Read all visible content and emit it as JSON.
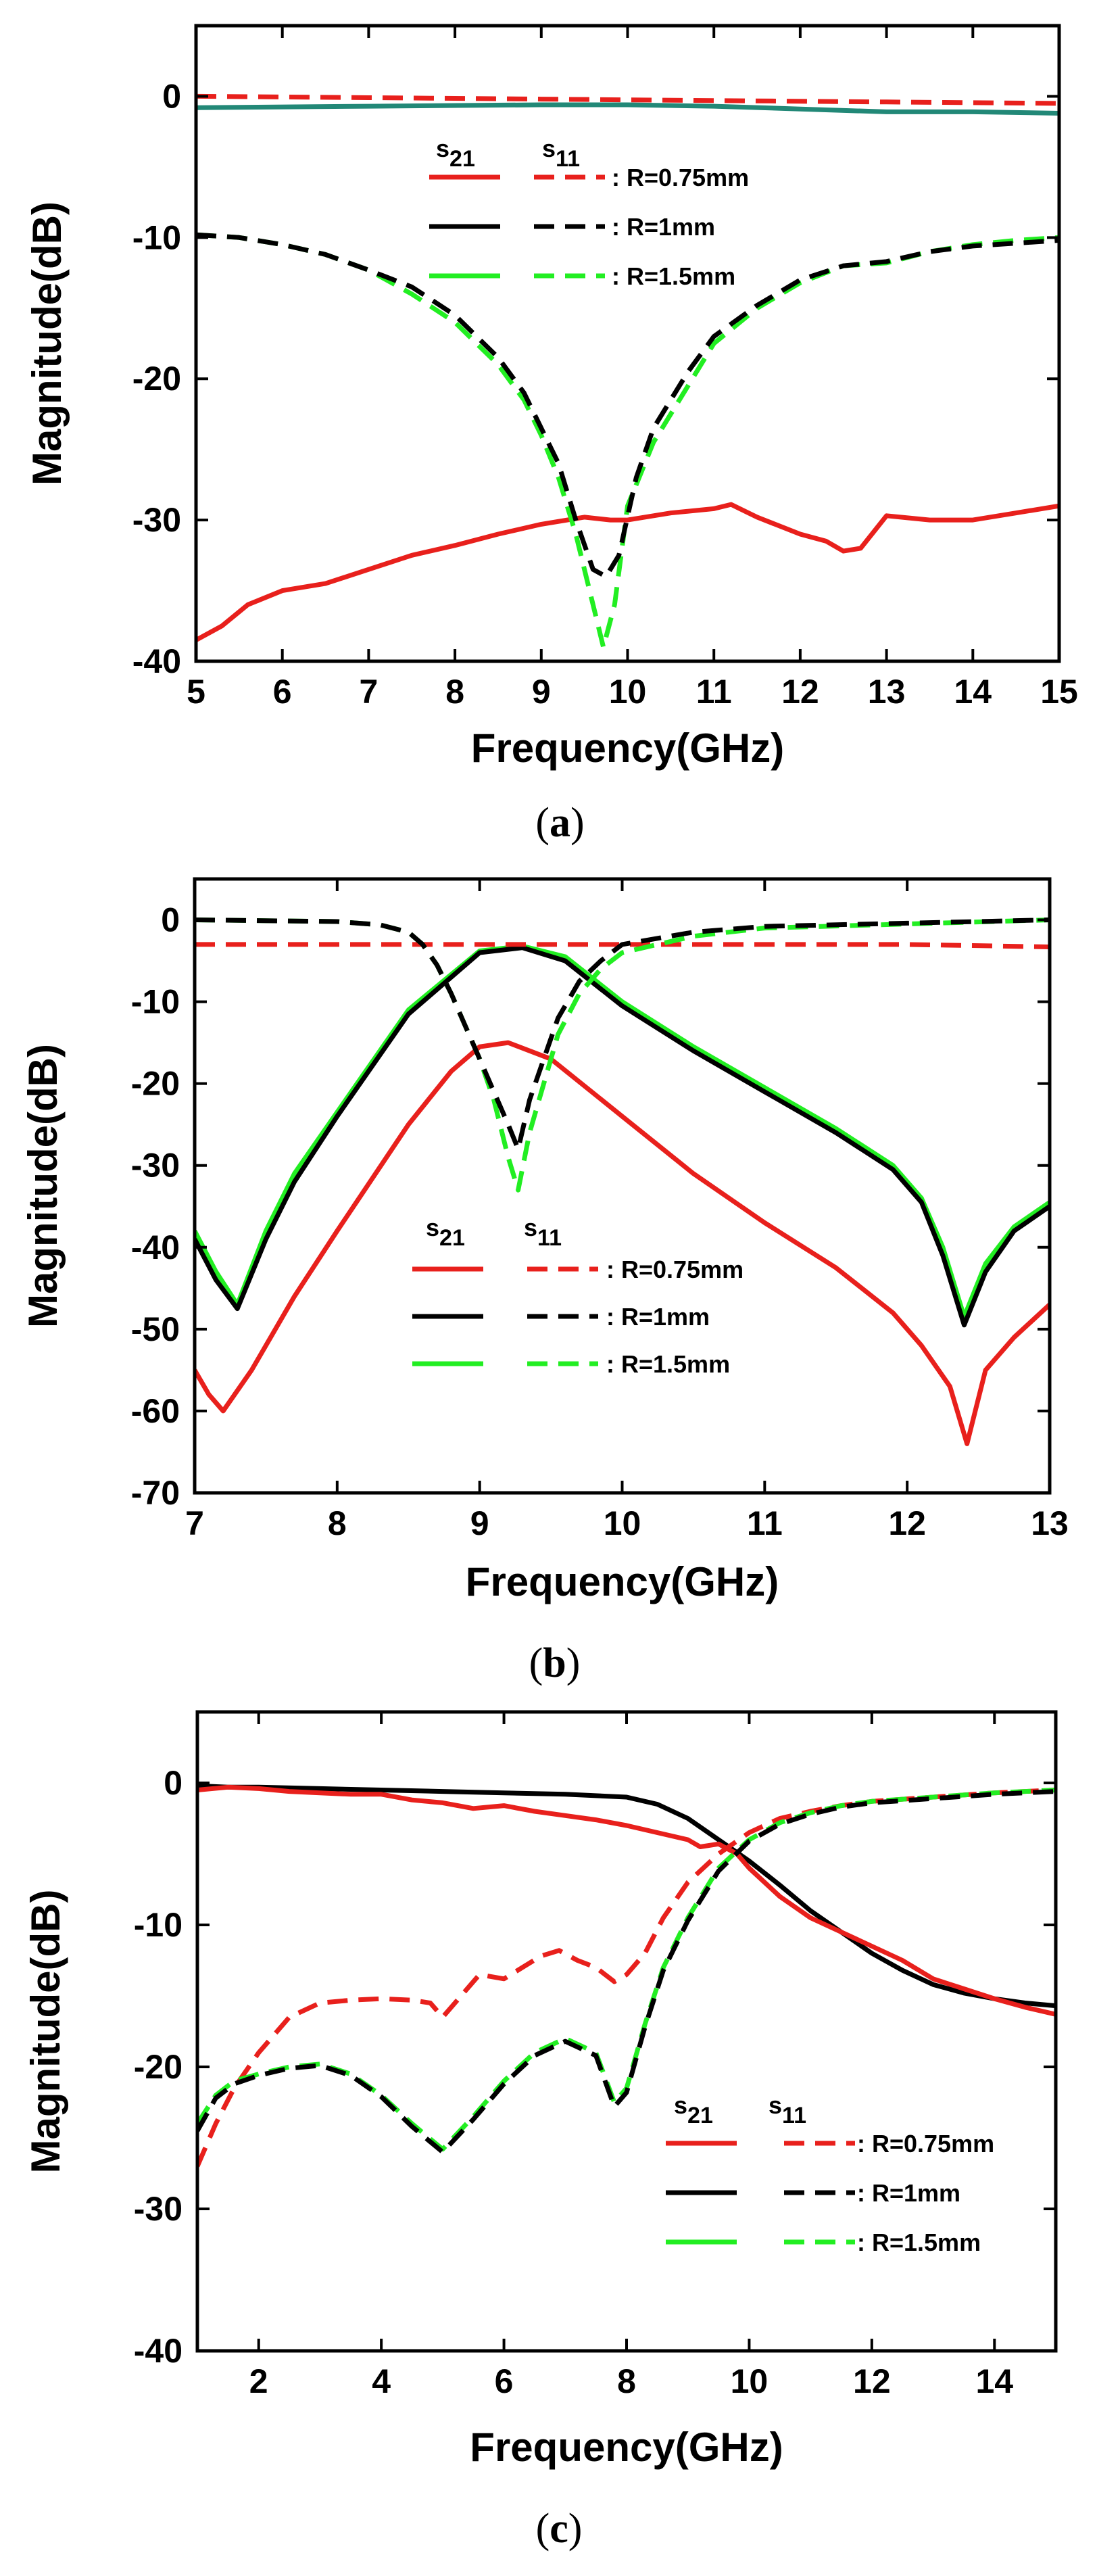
{
  "colors": {
    "red": "#e8201c",
    "black": "#000000",
    "green": "#22ee22",
    "teal": "#228877"
  },
  "chart_data": [
    {
      "type": "line",
      "panel": "a",
      "caption": {
        "open": "(",
        "letter": "a",
        "close": ")"
      },
      "xlabel": "Frequency(GHz)",
      "ylabel": "Magnitude(dB)",
      "xlim": [
        5,
        15
      ],
      "ylim": [
        -40,
        5
      ],
      "xticks": [
        5,
        6,
        7,
        8,
        9,
        10,
        11,
        12,
        13,
        14,
        15
      ],
      "yticks": [
        0,
        -10,
        -20,
        -30,
        -40
      ],
      "legend": {
        "placement": "top-center",
        "header": {
          "s21": [
            "s",
            "21"
          ],
          "s11": [
            "s",
            "11"
          ]
        },
        "entries": [
          {
            "label": ": R=0.75mm",
            "color": "#e8201c"
          },
          {
            "label": ": R=1mm",
            "color": "#000000"
          },
          {
            "label": ": R=1.5mm",
            "color": "#22ee22"
          }
        ]
      },
      "series": [
        {
          "name": "S21 R=0.75mm",
          "color": "#e8201c",
          "dash": false,
          "x": [
            5,
            5.3,
            5.6,
            6,
            6.5,
            7,
            7.5,
            8,
            8.5,
            9,
            9.5,
            9.8,
            10,
            10.5,
            11,
            11.2,
            11.5,
            12,
            12.3,
            12.5,
            12.7,
            13,
            13.5,
            14,
            14.5,
            15
          ],
          "y": [
            -38.5,
            -37.5,
            -36,
            -35,
            -34.5,
            -33.5,
            -32.5,
            -31.8,
            -31,
            -30.3,
            -29.8,
            -30,
            -30,
            -29.5,
            -29.2,
            -28.9,
            -29.8,
            -31,
            -31.5,
            -32.2,
            -32,
            -29.7,
            -30,
            -30,
            -29.5,
            -29
          ]
        },
        {
          "name": "S11 R=0.75mm",
          "color": "#e8201c",
          "dash": true,
          "x": [
            5,
            7,
            9,
            11,
            13,
            15
          ],
          "y": [
            0,
            -0.1,
            -0.2,
            -0.3,
            -0.4,
            -0.5
          ]
        },
        {
          "name": "S21 R=1mm/R=1.5mm",
          "color": "#228877",
          "dash": false,
          "x": [
            5,
            7,
            9,
            10,
            11,
            12,
            13,
            14,
            15
          ],
          "y": [
            -0.8,
            -0.7,
            -0.6,
            -0.6,
            -0.7,
            -0.9,
            -1.1,
            -1.1,
            -1.2
          ]
        },
        {
          "name": "S11 R=1.5mm",
          "color": "#22ee22",
          "dash": true,
          "x": [
            5,
            5.5,
            6,
            6.5,
            7,
            7.5,
            8,
            8.5,
            8.8,
            9,
            9.2,
            9.4,
            9.6,
            9.72,
            9.85,
            10,
            10.3,
            10.7,
            11,
            11.5,
            12,
            12.5,
            13,
            13.5,
            14,
            14.5,
            15
          ],
          "y": [
            -9.8,
            -10,
            -10.5,
            -11.2,
            -12.3,
            -14,
            -16,
            -19,
            -21.5,
            -24,
            -27,
            -31,
            -36,
            -39,
            -36,
            -29,
            -24.5,
            -20.5,
            -17.5,
            -15,
            -13.2,
            -12,
            -11.8,
            -11,
            -10.5,
            -10.2,
            -10
          ]
        },
        {
          "name": "S11 R=1mm",
          "color": "#000000",
          "dash": true,
          "x": [
            5,
            5.5,
            6,
            6.5,
            7,
            7.5,
            8,
            8.5,
            8.8,
            9,
            9.2,
            9.4,
            9.6,
            9.75,
            9.9,
            10.1,
            10.3,
            10.7,
            11,
            11.5,
            12,
            12.5,
            13,
            13.5,
            14,
            14.5,
            15
          ],
          "y": [
            -9.8,
            -10,
            -10.5,
            -11.2,
            -12.3,
            -13.5,
            -15.5,
            -18.5,
            -21,
            -23.5,
            -26,
            -30,
            -33.5,
            -34,
            -32.5,
            -27,
            -23.5,
            -19.5,
            -17,
            -14.8,
            -13,
            -12,
            -11.7,
            -11,
            -10.6,
            -10.4,
            -10.2
          ]
        }
      ]
    },
    {
      "type": "line",
      "panel": "b",
      "caption": {
        "open": "(",
        "letter": "b",
        "close": ")"
      },
      "xlabel": "Frequency(GHz)",
      "ylabel": "Magnitude(dB)",
      "xlim": [
        7,
        13
      ],
      "ylim": [
        -70,
        5
      ],
      "xticks": [
        7,
        8,
        9,
        10,
        11,
        12,
        13
      ],
      "yticks": [
        0,
        -10,
        -20,
        -30,
        -40,
        -50,
        -60,
        -70
      ],
      "legend": {
        "placement": "center-left",
        "header": {
          "s21": [
            "s",
            "21"
          ],
          "s11": [
            "s",
            "11"
          ]
        },
        "entries": [
          {
            "label": ": R=0.75mm",
            "color": "#e8201c"
          },
          {
            "label": ": R=1mm",
            "color": "#000000"
          },
          {
            "label": ": R=1.5mm",
            "color": "#22ee22"
          }
        ]
      },
      "series": [
        {
          "name": "S21 R=1.5mm",
          "color": "#22ee22",
          "dash": false,
          "x": [
            7,
            7.15,
            7.3,
            7.5,
            7.7,
            8,
            8.5,
            9,
            9.3,
            9.6,
            10,
            10.5,
            11,
            11.5,
            11.9,
            12.1,
            12.25,
            12.4,
            12.55,
            12.75,
            13
          ],
          "y": [
            -38,
            -43,
            -47,
            -38,
            -31,
            -23.5,
            -11,
            -3.8,
            -3.2,
            -4.5,
            -10,
            -15.5,
            -20.5,
            -25.5,
            -30,
            -34,
            -40,
            -48.5,
            -42,
            -37.5,
            -34.5
          ]
        },
        {
          "name": "S21 R=1mm",
          "color": "#000000",
          "dash": false,
          "x": [
            7,
            7.15,
            7.3,
            7.5,
            7.7,
            8,
            8.5,
            9,
            9.3,
            9.6,
            10,
            10.5,
            11,
            11.5,
            11.9,
            12.1,
            12.25,
            12.4,
            12.55,
            12.75,
            13
          ],
          "y": [
            -39,
            -44,
            -47.5,
            -39,
            -32,
            -24,
            -11.5,
            -4,
            -3.4,
            -5,
            -10.5,
            -16,
            -21,
            -26,
            -30.5,
            -34.5,
            -41,
            -49.5,
            -43,
            -38,
            -35
          ]
        },
        {
          "name": "S21 R=0.75mm",
          "color": "#e8201c",
          "dash": false,
          "x": [
            7,
            7.1,
            7.2,
            7.4,
            7.7,
            8,
            8.5,
            8.8,
            9,
            9.2,
            9.5,
            10,
            10.5,
            11,
            11.5,
            11.9,
            12.1,
            12.3,
            12.42,
            12.55,
            12.75,
            13
          ],
          "y": [
            -55,
            -58,
            -60,
            -55,
            -46,
            -38,
            -25,
            -18.5,
            -15.5,
            -15,
            -17,
            -24,
            -31,
            -37,
            -42.5,
            -48,
            -52,
            -57,
            -64,
            -55,
            -51,
            -47
          ]
        },
        {
          "name": "S11 R=0.75mm",
          "color": "#e8201c",
          "dash": true,
          "x": [
            7,
            8,
            9,
            10,
            11,
            12,
            13
          ],
          "y": [
            -3,
            -3,
            -3,
            -3,
            -3,
            -3,
            -3.3
          ]
        },
        {
          "name": "S11 R=1.5mm",
          "color": "#22ee22",
          "dash": true,
          "x": [
            7,
            8,
            8.3,
            8.5,
            8.6,
            8.7,
            8.8,
            8.9,
            9,
            9.1,
            9.2,
            9.27,
            9.35,
            9.45,
            9.55,
            9.7,
            9.85,
            10,
            10.5,
            11,
            12,
            13
          ],
          "y": [
            0,
            -0.2,
            -0.6,
            -1.5,
            -3,
            -5.5,
            -9,
            -13,
            -17,
            -22,
            -29,
            -33,
            -26,
            -20,
            -14,
            -9,
            -6,
            -4,
            -2,
            -1,
            -0.5,
            0
          ]
        },
        {
          "name": "S11 R=1mm",
          "color": "#000000",
          "dash": true,
          "x": [
            7,
            8,
            8.3,
            8.5,
            8.6,
            8.7,
            8.8,
            8.9,
            9,
            9.1,
            9.2,
            9.27,
            9.35,
            9.45,
            9.55,
            9.7,
            9.85,
            10,
            10.5,
            11,
            12,
            13
          ],
          "y": [
            0,
            -0.2,
            -0.6,
            -1.5,
            -3,
            -5.5,
            -9,
            -13,
            -17,
            -21,
            -25,
            -28,
            -22,
            -17,
            -12,
            -7.5,
            -5,
            -3,
            -1.5,
            -0.8,
            -0.4,
            0
          ]
        }
      ]
    },
    {
      "type": "line",
      "panel": "c",
      "caption": {
        "open": "(",
        "letter": "c",
        "close": ")"
      },
      "xlabel": "Frequency(GHz)",
      "ylabel": "Magnitude(dB)",
      "xlim": [
        1,
        15
      ],
      "ylim": [
        -40,
        5
      ],
      "xticks": [
        2,
        4,
        6,
        8,
        10,
        12,
        14
      ],
      "yticks": [
        0,
        -10,
        -20,
        -30,
        -40
      ],
      "legend": {
        "placement": "bottom-right",
        "header": {
          "s21": [
            "s",
            "21"
          ],
          "s11": [
            "s",
            "11"
          ]
        },
        "entries": [
          {
            "label": ": R=0.75mm",
            "color": "#e8201c"
          },
          {
            "label": ": R=1mm",
            "color": "#000000"
          },
          {
            "label": ": R=1.5mm",
            "color": "#22ee22"
          }
        ]
      },
      "series": [
        {
          "name": "S21 R=1mm/R=1.5mm",
          "color": "#000000",
          "dash": false,
          "x": [
            1,
            1.5,
            2,
            3,
            4,
            5,
            6,
            7,
            7.5,
            8,
            8.5,
            9,
            9.5,
            10,
            10.5,
            11,
            11.5,
            12,
            12.5,
            13,
            13.5,
            14,
            14.5,
            15
          ],
          "y": [
            -0.2,
            -0.3,
            -0.3,
            -0.4,
            -0.5,
            -0.6,
            -0.7,
            -0.8,
            -0.9,
            -1,
            -1.5,
            -2.5,
            -4,
            -5.5,
            -7.2,
            -9,
            -10.5,
            -12,
            -13.2,
            -14.2,
            -14.8,
            -15.2,
            -15.5,
            -15.7
          ]
        },
        {
          "name": "S21 R=0.75mm",
          "color": "#e8201c",
          "dash": false,
          "x": [
            1,
            1.5,
            2,
            2.5,
            3,
            3.5,
            4,
            4.5,
            5,
            5.5,
            6,
            6.5,
            7,
            7.5,
            8,
            8.5,
            9,
            9.2,
            9.5,
            9.8,
            10,
            10.5,
            11,
            11.5,
            12,
            12.5,
            13,
            13.5,
            14,
            14.5,
            15
          ],
          "y": [
            -0.5,
            -0.3,
            -0.4,
            -0.6,
            -0.7,
            -0.8,
            -0.8,
            -1.2,
            -1.4,
            -1.8,
            -1.6,
            -2,
            -2.3,
            -2.6,
            -3,
            -3.5,
            -4,
            -4.5,
            -4.3,
            -5,
            -6,
            -8,
            -9.5,
            -10.5,
            -11.5,
            -12.5,
            -13.8,
            -14.5,
            -15.2,
            -15.8,
            -16.3
          ]
        },
        {
          "name": "S11 R=0.75mm",
          "color": "#e8201c",
          "dash": true,
          "x": [
            1,
            1.3,
            1.6,
            2,
            2.5,
            3,
            3.5,
            4,
            4.5,
            4.8,
            5,
            5.3,
            5.6,
            6,
            6.3,
            6.6,
            6.9,
            7.2,
            7.5,
            7.8,
            8,
            8.3,
            8.6,
            9,
            9.5,
            10,
            10.5,
            11,
            11.5,
            12,
            13,
            14,
            15
          ],
          "y": [
            -27,
            -24,
            -21.5,
            -19,
            -16.5,
            -15.5,
            -15.3,
            -15.2,
            -15.3,
            -15.5,
            -16.5,
            -15,
            -13.5,
            -13.8,
            -13,
            -12.2,
            -11.8,
            -12.5,
            -13,
            -14,
            -13.5,
            -12,
            -9.5,
            -7,
            -5,
            -3.5,
            -2.5,
            -2,
            -1.6,
            -1.3,
            -1,
            -0.7,
            -0.5
          ]
        },
        {
          "name": "S11 R=1.5mm",
          "color": "#22ee22",
          "dash": true,
          "x": [
            1,
            1.3,
            1.6,
            2,
            2.5,
            3,
            3.5,
            4,
            4.5,
            5,
            5.5,
            6,
            6.5,
            7,
            7.5,
            7.8,
            8,
            8.3,
            8.6,
            9,
            9.5,
            10,
            10.5,
            11,
            11.5,
            12,
            13,
            14,
            15
          ],
          "y": [
            -24,
            -22,
            -21,
            -20.5,
            -20,
            -19.8,
            -20.5,
            -22,
            -24,
            -25.8,
            -23.5,
            -21,
            -19,
            -18,
            -19,
            -22.5,
            -21.5,
            -17,
            -13,
            -9.5,
            -6,
            -4,
            -2.8,
            -2.1,
            -1.6,
            -1.3,
            -1,
            -0.7,
            -0.5
          ]
        },
        {
          "name": "S11 R=1mm",
          "color": "#000000",
          "dash": true,
          "x": [
            1,
            1.3,
            1.6,
            2,
            2.5,
            3,
            3.5,
            4,
            4.5,
            5,
            5.5,
            6,
            6.5,
            7,
            7.5,
            7.8,
            8,
            8.3,
            8.6,
            9,
            9.5,
            10,
            10.5,
            11,
            11.5,
            12,
            13,
            14,
            15
          ],
          "y": [
            -24.5,
            -22.2,
            -21.2,
            -20.6,
            -20.1,
            -19.9,
            -20.6,
            -22.1,
            -24.2,
            -26,
            -23.7,
            -21.2,
            -19.2,
            -18.2,
            -19.2,
            -22.8,
            -21.8,
            -17.2,
            -13.2,
            -9.7,
            -6.2,
            -4.1,
            -2.9,
            -2.2,
            -1.7,
            -1.4,
            -1.1,
            -0.8,
            -0.6
          ]
        }
      ]
    }
  ]
}
